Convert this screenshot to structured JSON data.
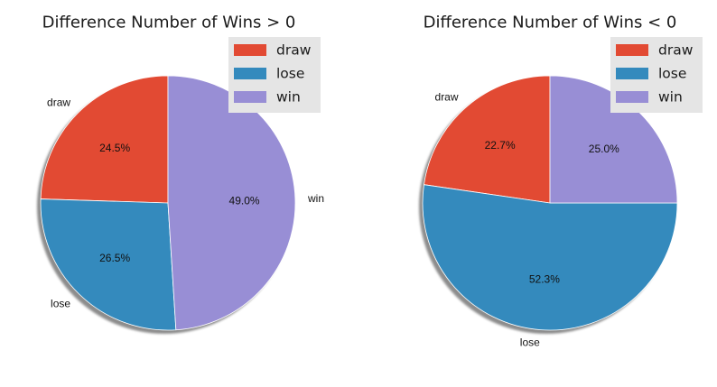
{
  "chart_data": [
    {
      "type": "pie",
      "title": "Difference Number of Wins > 0",
      "categories": [
        "draw",
        "lose",
        "win"
      ],
      "values": [
        24.5,
        26.5,
        49.0
      ],
      "value_labels": [
        "24.5%",
        "26.5%",
        "49.0%"
      ],
      "colors": [
        "#E24A33",
        "#348ABD",
        "#988ED5"
      ],
      "shadow": true,
      "start_angle": 90,
      "direction": "counterclockwise",
      "legend": {
        "placement": "top-right",
        "entries": [
          "draw",
          "lose",
          "win"
        ]
      }
    },
    {
      "type": "pie",
      "title": "Difference Number of Wins < 0",
      "categories": [
        "draw",
        "lose",
        "win"
      ],
      "values": [
        22.7,
        52.3,
        25.0
      ],
      "value_labels": [
        "22.7%",
        "52.3%",
        "25.0%"
      ],
      "colors": [
        "#E24A33",
        "#348ABD",
        "#988ED5"
      ],
      "shadow": true,
      "start_angle": 90,
      "direction": "counterclockwise",
      "legend": {
        "placement": "top-right",
        "entries": [
          "draw",
          "lose",
          "win"
        ]
      }
    }
  ]
}
